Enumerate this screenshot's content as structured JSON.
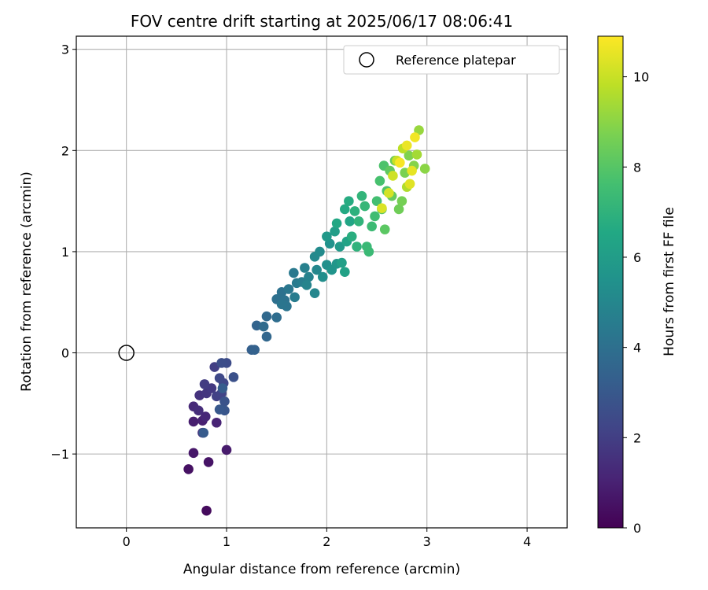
{
  "chart_data": {
    "type": "scatter",
    "title": "FOV centre drift starting at 2025/06/17 08:06:41",
    "xlabel": "Angular distance from reference (arcmin)",
    "ylabel": "Rotation from reference (arcmin)",
    "xlim": [
      -0.5,
      4.4
    ],
    "ylim": [
      -1.73,
      3.13
    ],
    "xticks": [
      0,
      1,
      2,
      3,
      4
    ],
    "yticks": [
      -1,
      0,
      1,
      2,
      3
    ],
    "xtick_labels": [
      "0",
      "1",
      "2",
      "3",
      "4"
    ],
    "ytick_labels": [
      "−1",
      "0",
      "1",
      "2",
      "3"
    ],
    "grid": true,
    "legend": {
      "placement": "top-right",
      "entries": [
        "Reference platepar"
      ]
    },
    "reference_point": {
      "x": 0,
      "y": 0,
      "label": "Reference platepar"
    },
    "colorbar": {
      "label": "Hours from first FF file",
      "range": [
        0,
        10.9
      ],
      "ticks": [
        0,
        2,
        4,
        6,
        8,
        10
      ],
      "tick_labels": [
        "0",
        "2",
        "4",
        "6",
        "8",
        "10"
      ],
      "colormap": "viridis"
    },
    "points": [
      [
        0.8,
        -1.56,
        0.3
      ],
      [
        0.62,
        -1.15,
        0.5
      ],
      [
        0.82,
        -1.08,
        0.6
      ],
      [
        0.67,
        -0.99,
        0.7
      ],
      [
        1.0,
        -0.96,
        0.8
      ],
      [
        0.67,
        -0.68,
        0.9
      ],
      [
        0.76,
        -0.67,
        1.0
      ],
      [
        0.9,
        -0.69,
        1.1
      ],
      [
        0.79,
        -0.63,
        1.2
      ],
      [
        0.67,
        -0.53,
        1.3
      ],
      [
        0.72,
        -0.57,
        1.4
      ],
      [
        0.76,
        -0.79,
        1.5
      ],
      [
        0.73,
        -0.42,
        1.6
      ],
      [
        0.8,
        -0.4,
        1.7
      ],
      [
        0.85,
        -0.35,
        1.8
      ],
      [
        0.78,
        -0.31,
        1.9
      ],
      [
        0.88,
        -0.14,
        2.0
      ],
      [
        0.9,
        -0.43,
        2.1
      ],
      [
        0.95,
        -0.4,
        2.2
      ],
      [
        0.97,
        -0.3,
        2.3
      ],
      [
        0.93,
        -0.25,
        2.4
      ],
      [
        1.0,
        -0.1,
        2.5
      ],
      [
        0.95,
        -0.1,
        2.6
      ],
      [
        1.07,
        -0.24,
        2.7
      ],
      [
        0.98,
        -0.48,
        2.8
      ],
      [
        0.98,
        -0.57,
        2.9
      ],
      [
        0.93,
        -0.56,
        3.0
      ],
      [
        0.77,
        -0.79,
        3.1
      ],
      [
        0.96,
        -0.35,
        3.2
      ],
      [
        1.25,
        0.03,
        3.3
      ],
      [
        1.28,
        0.03,
        3.4
      ],
      [
        1.3,
        0.27,
        3.5
      ],
      [
        1.4,
        0.16,
        3.6
      ],
      [
        1.4,
        0.36,
        3.7
      ],
      [
        1.37,
        0.26,
        3.8
      ],
      [
        1.5,
        0.35,
        3.9
      ],
      [
        1.5,
        0.53,
        4.0
      ],
      [
        1.55,
        0.6,
        4.05
      ],
      [
        1.58,
        0.52,
        4.1
      ],
      [
        1.6,
        0.46,
        4.2
      ],
      [
        1.55,
        0.48,
        4.25
      ],
      [
        1.62,
        0.63,
        4.3
      ],
      [
        1.67,
        0.79,
        4.4
      ],
      [
        1.7,
        0.69,
        4.5
      ],
      [
        1.68,
        0.55,
        4.55
      ],
      [
        1.75,
        0.7,
        4.6
      ],
      [
        1.78,
        0.84,
        4.7
      ],
      [
        1.82,
        0.75,
        4.8
      ],
      [
        1.8,
        0.67,
        4.9
      ],
      [
        1.88,
        0.59,
        4.95
      ],
      [
        1.9,
        0.82,
        5.0
      ],
      [
        1.88,
        0.95,
        5.1
      ],
      [
        1.93,
        1.0,
        5.2
      ],
      [
        1.96,
        0.75,
        5.3
      ],
      [
        2.0,
        0.87,
        5.4
      ],
      [
        2.03,
        1.08,
        5.5
      ],
      [
        2.05,
        0.82,
        5.6
      ],
      [
        2.1,
        0.88,
        5.7
      ],
      [
        2.0,
        1.15,
        5.8
      ],
      [
        2.13,
        1.05,
        5.9
      ],
      [
        2.08,
        1.2,
        6.0
      ],
      [
        2.15,
        0.89,
        6.1
      ],
      [
        2.18,
        0.8,
        6.2
      ],
      [
        2.2,
        1.1,
        6.3
      ],
      [
        2.23,
        1.3,
        6.4
      ],
      [
        2.1,
        1.28,
        6.5
      ],
      [
        2.18,
        1.42,
        6.6
      ],
      [
        2.22,
        1.5,
        6.7
      ],
      [
        2.25,
        1.15,
        6.8
      ],
      [
        2.28,
        1.4,
        6.9
      ],
      [
        2.3,
        1.05,
        7.0
      ],
      [
        2.32,
        1.3,
        7.05
      ],
      [
        2.35,
        1.55,
        7.1
      ],
      [
        2.38,
        1.45,
        7.2
      ],
      [
        2.4,
        1.05,
        7.3
      ],
      [
        2.42,
        1.0,
        7.35
      ],
      [
        2.45,
        1.25,
        7.4
      ],
      [
        2.48,
        1.35,
        7.5
      ],
      [
        2.5,
        1.5,
        7.6
      ],
      [
        2.53,
        1.7,
        7.7
      ],
      [
        2.57,
        1.85,
        7.8
      ],
      [
        2.6,
        1.6,
        7.9
      ],
      [
        2.55,
        1.42,
        8.0
      ],
      [
        2.58,
        1.22,
        8.1
      ],
      [
        2.63,
        1.8,
        8.2
      ],
      [
        2.65,
        1.55,
        8.3
      ],
      [
        2.68,
        1.9,
        8.4
      ],
      [
        2.72,
        1.42,
        8.5
      ],
      [
        2.75,
        1.5,
        8.6
      ],
      [
        2.78,
        1.78,
        8.7
      ],
      [
        2.82,
        1.95,
        8.8
      ],
      [
        2.87,
        1.85,
        8.9
      ],
      [
        2.98,
        1.82,
        9.0
      ],
      [
        2.92,
        2.2,
        9.2
      ],
      [
        2.9,
        1.96,
        9.4
      ],
      [
        2.8,
        1.64,
        9.6
      ],
      [
        2.76,
        2.02,
        9.8
      ],
      [
        2.7,
        1.9,
        10.0
      ],
      [
        2.66,
        1.75,
        10.1
      ],
      [
        2.62,
        1.58,
        10.2
      ],
      [
        2.55,
        1.43,
        10.3
      ],
      [
        2.83,
        1.67,
        10.4
      ],
      [
        2.85,
        1.8,
        10.5
      ],
      [
        2.8,
        2.05,
        10.6
      ],
      [
        2.88,
        2.13,
        10.7
      ],
      [
        2.73,
        1.88,
        10.8
      ]
    ]
  }
}
